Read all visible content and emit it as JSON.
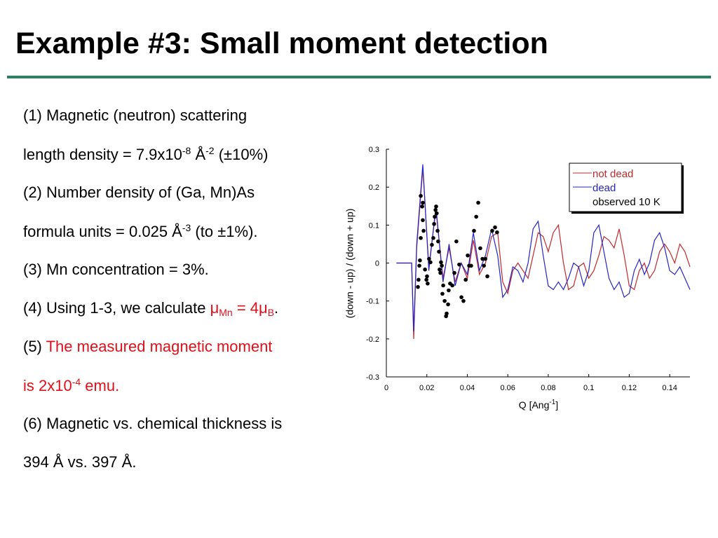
{
  "title": "Example #3: Small moment detection",
  "lines": [
    [
      "(1) Magnetic (neutron) scattering"
    ],
    [
      "length density = 7.9x10",
      "-8",
      " Å",
      "-2",
      " (±10%)"
    ],
    [
      "(2) Number density of (Ga, Mn)As"
    ],
    [
      "formula units = 0.025 Å",
      "-3",
      " (to ",
      "±",
      "1%)."
    ],
    [
      "(3) Mn concentration = 3%."
    ],
    [
      "(4) Using 1-3, we calculate ",
      "μ",
      "Mn",
      " = 4",
      "μ",
      "B",
      "."
    ],
    [
      "(5) ",
      "The measured magnetic moment"
    ],
    [
      "is 2x10",
      "-4",
      " emu."
    ],
    [
      "(6) Magnetic vs. chemical thickness is"
    ],
    [
      "394 Å vs. 397 Å."
    ]
  ],
  "chart_data": {
    "type": "line",
    "xlabel": [
      "Q [Ang",
      "-1",
      "]"
    ],
    "ylabel": "(down - up) / (down + up)",
    "xlim": [
      0,
      0.15
    ],
    "xticks": [
      0,
      0.02,
      0.04,
      0.06,
      0.08,
      0.1,
      0.12,
      0.14
    ],
    "ylim": [
      -0.3,
      0.3
    ],
    "yticks": [
      -0.3,
      -0.2,
      -0.1,
      0,
      0.1,
      0.2,
      0.3
    ],
    "legend": "upper right",
    "series": [
      {
        "name": "not dead",
        "color": "#c0282a",
        "type": "line",
        "x": [
          0.005,
          0.0125,
          0.0135,
          0.015,
          0.018,
          0.021,
          0.0245,
          0.028,
          0.031,
          0.034,
          0.037,
          0.04,
          0.043,
          0.046,
          0.049,
          0.052,
          0.055,
          0.0575,
          0.06,
          0.0625,
          0.065,
          0.0675,
          0.07,
          0.0725,
          0.075,
          0.0775,
          0.08,
          0.0825,
          0.085,
          0.0875,
          0.09,
          0.0925,
          0.095,
          0.0975,
          0.1,
          0.1025,
          0.105,
          0.1075,
          0.11,
          0.1125,
          0.115,
          0.1175,
          0.12,
          0.1225,
          0.125,
          0.1275,
          0.13,
          0.1325,
          0.135,
          0.1375,
          0.14,
          0.1425,
          0.145,
          0.1475,
          0.15
        ],
        "values": [
          0,
          0,
          -0.2,
          0.04,
          0.25,
          -0.01,
          0.14,
          -0.04,
          0.04,
          -0.05,
          0,
          -0.04,
          0.06,
          -0.03,
          0,
          0.07,
          0.08,
          -0.05,
          -0.08,
          -0.02,
          0,
          -0.02,
          -0.04,
          0.02,
          0.08,
          0.07,
          0.03,
          0.08,
          0.1,
          0,
          -0.07,
          -0.06,
          -0.01,
          0,
          -0.04,
          -0.02,
          0.02,
          0.07,
          0.06,
          0.04,
          0.09,
          0.02,
          -0.06,
          -0.07,
          -0.02,
          0,
          -0.04,
          -0.02,
          0.03,
          0.05,
          0.03,
          0,
          0.05,
          0.03,
          -0.01
        ]
      },
      {
        "name": "dead",
        "color": "#2424c8",
        "type": "line",
        "x": [
          0.005,
          0.0125,
          0.0135,
          0.015,
          0.018,
          0.021,
          0.0245,
          0.028,
          0.031,
          0.034,
          0.037,
          0.04,
          0.043,
          0.046,
          0.049,
          0.052,
          0.055,
          0.0575,
          0.06,
          0.0625,
          0.065,
          0.0675,
          0.07,
          0.0725,
          0.075,
          0.0775,
          0.08,
          0.0825,
          0.085,
          0.0875,
          0.09,
          0.0925,
          0.095,
          0.0975,
          0.1,
          0.1025,
          0.105,
          0.1075,
          0.11,
          0.1125,
          0.115,
          0.1175,
          0.12,
          0.1225,
          0.125,
          0.1275,
          0.13,
          0.1325,
          0.135,
          0.1375,
          0.14,
          0.1425,
          0.145,
          0.1475,
          0.15
        ],
        "values": [
          0,
          0,
          -0.18,
          0.05,
          0.26,
          -0.02,
          0.15,
          -0.05,
          0.05,
          -0.06,
          0,
          -0.03,
          0.08,
          -0.02,
          0.02,
          0.09,
          0.02,
          -0.09,
          -0.07,
          -0.01,
          -0.02,
          -0.05,
          0,
          0.09,
          0.11,
          0.02,
          -0.06,
          -0.07,
          -0.05,
          -0.07,
          -0.04,
          0,
          -0.01,
          -0.06,
          -0.02,
          0.08,
          0.1,
          0.03,
          -0.04,
          -0.07,
          -0.05,
          -0.09,
          -0.08,
          -0.02,
          0.01,
          -0.03,
          0,
          0.06,
          0.08,
          0.04,
          -0.02,
          -0.03,
          -0.01,
          -0.04,
          -0.07
        ]
      },
      {
        "name": "observed 10 K",
        "color": "#000000",
        "type": "scatter",
        "x": [
          0.0156,
          0.0159,
          0.0163,
          0.0166,
          0.017,
          0.017,
          0.0177,
          0.018,
          0.018,
          0.0184,
          0.0191,
          0.0198,
          0.0201,
          0.0204,
          0.0211,
          0.0218,
          0.0225,
          0.0232,
          0.0236,
          0.0239,
          0.0243,
          0.0246,
          0.0249,
          0.0253,
          0.0256,
          0.026,
          0.0263,
          0.0267,
          0.027,
          0.0274,
          0.0277,
          0.0281,
          0.0288,
          0.0295,
          0.0298,
          0.0305,
          0.0308,
          0.0315,
          0.0326,
          0.0336,
          0.0346,
          0.036,
          0.0371,
          0.0381,
          0.0392,
          0.0402,
          0.0409,
          0.0419,
          0.0433,
          0.0444,
          0.0454,
          0.0464,
          0.0475,
          0.0482,
          0.0489,
          0.0499,
          0.0523,
          0.0537,
          0.0547
        ],
        "values": [
          -0.063,
          -0.044,
          -0.007,
          0.007,
          0.066,
          0.177,
          0.149,
          0.159,
          0.113,
          0.085,
          -0.017,
          -0.044,
          -0.035,
          -0.054,
          0.011,
          0.002,
          0.048,
          0.066,
          0.103,
          0.122,
          0.14,
          0.149,
          0.131,
          0.085,
          0.057,
          0.03,
          -0.017,
          -0.026,
          0.002,
          -0.007,
          -0.081,
          -0.059,
          -0.1,
          -0.14,
          -0.133,
          -0.109,
          -0.072,
          -0.054,
          -0.059,
          -0.026,
          0.057,
          -0.004,
          -0.09,
          -0.1,
          -0.044,
          0.02,
          -0.007,
          -0.007,
          0.085,
          0.122,
          0.159,
          0.039,
          0.011,
          -0.007,
          0.011,
          -0.035,
          0.085,
          0.094,
          0.081
        ]
      }
    ]
  }
}
